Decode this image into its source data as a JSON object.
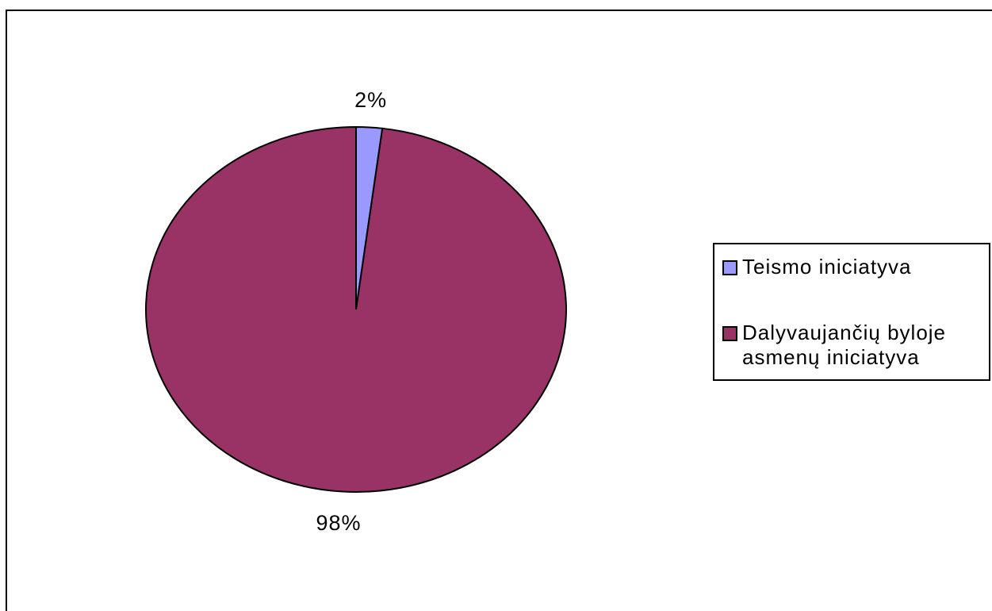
{
  "chart_data": {
    "type": "pie",
    "title": "",
    "slices": [
      {
        "label": "Teismo iniciatyva",
        "value": 2,
        "display": "2%",
        "color": "#9999ff"
      },
      {
        "label": "Dalyvaujančių byloje asmenų iniciatyva",
        "value": 98,
        "display": "98%",
        "color": "#993366"
      }
    ],
    "start_angle": "12 o'clock",
    "direction": "clockwise",
    "legend_position": "right"
  },
  "legend": {
    "items": [
      {
        "label": "Teismo iniciatyva",
        "color": "#9999ff"
      },
      {
        "label": "Dalyvaujančių byloje\nasmenų iniciatyva",
        "color": "#993366"
      }
    ]
  }
}
